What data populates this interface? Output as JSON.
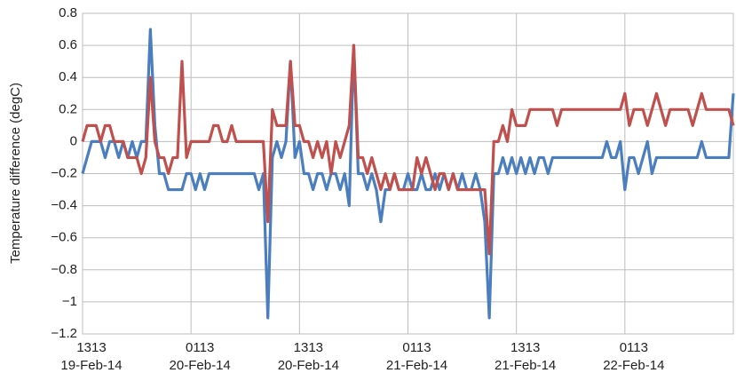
{
  "chart_data": {
    "type": "line",
    "y_label": "Temperature difference  (degC)",
    "categories": [
      "1313\n19-Feb-14",
      null,
      null,
      null,
      null,
      null,
      null,
      null,
      null,
      null,
      null,
      null,
      null,
      null,
      null,
      null,
      null,
      null,
      null,
      null,
      null,
      null,
      null,
      null,
      "0113\n20-Feb-14",
      null,
      null,
      null,
      null,
      null,
      null,
      null,
      null,
      null,
      null,
      null,
      null,
      null,
      null,
      null,
      null,
      null,
      null,
      null,
      null,
      null,
      null,
      null,
      "1313\n20-Feb-14",
      null,
      null,
      null,
      null,
      null,
      null,
      null,
      null,
      null,
      null,
      null,
      null,
      null,
      null,
      null,
      null,
      null,
      null,
      null,
      null,
      null,
      null,
      null,
      "0113\n21-Feb-14",
      null,
      null,
      null,
      null,
      null,
      null,
      null,
      null,
      null,
      null,
      null,
      null,
      null,
      null,
      null,
      null,
      null,
      null,
      null,
      null,
      null,
      null,
      null,
      "1313\n21-Feb-14",
      null,
      null,
      null,
      null,
      null,
      null,
      null,
      null,
      null,
      null,
      null,
      null,
      null,
      null,
      null,
      null,
      null,
      null,
      null,
      null,
      null,
      null,
      null,
      "0113\n22-Feb-14",
      null,
      null,
      null,
      null,
      null,
      null,
      null,
      null,
      null,
      null,
      null,
      null,
      null,
      null,
      null,
      null,
      null,
      null,
      null,
      null,
      null,
      null,
      null,
      null
    ],
    "series": [
      {
        "color": "#4a7ebf",
        "values": [
          -0.2,
          -0.1,
          0,
          0,
          0,
          -0.1,
          0,
          0,
          -0.1,
          0,
          -0.1,
          0,
          -0.1,
          0,
          0,
          0.7,
          0.1,
          -0.2,
          -0.2,
          -0.3,
          -0.3,
          -0.3,
          -0.3,
          -0.2,
          -0.2,
          -0.3,
          -0.2,
          -0.3,
          -0.2,
          -0.2,
          -0.2,
          -0.2,
          -0.2,
          -0.2,
          -0.2,
          -0.2,
          -0.2,
          -0.2,
          -0.2,
          -0.3,
          -0.2,
          -1.1,
          -0.1,
          0,
          -0.1,
          0,
          0.5,
          -0.1,
          0,
          -0.2,
          -0.2,
          -0.3,
          -0.2,
          -0.2,
          -0.3,
          -0.2,
          -0.2,
          -0.3,
          -0.2,
          -0.4,
          0.6,
          -0.2,
          -0.2,
          -0.3,
          -0.2,
          -0.3,
          -0.5,
          -0.3,
          -0.3,
          -0.2,
          -0.3,
          -0.3,
          -0.2,
          -0.3,
          -0.3,
          -0.2,
          -0.3,
          -0.3,
          -0.2,
          -0.3,
          -0.2,
          -0.3,
          -0.2,
          -0.3,
          -0.2,
          -0.3,
          -0.3,
          -0.2,
          -0.3,
          -0.5,
          -1.1,
          -0.2,
          -0.2,
          -0.1,
          -0.2,
          -0.1,
          -0.2,
          -0.1,
          -0.2,
          -0.1,
          -0.2,
          -0.1,
          -0.1,
          -0.2,
          -0.1,
          -0.1,
          -0.1,
          -0.1,
          -0.1,
          -0.1,
          -0.1,
          -0.1,
          -0.1,
          -0.1,
          -0.1,
          -0.1,
          0,
          -0.1,
          -0.1,
          0,
          -0.3,
          -0.1,
          -0.1,
          -0.2,
          -0.1,
          0,
          -0.2,
          -0.1,
          -0.1,
          -0.1,
          -0.1,
          -0.1,
          -0.1,
          -0.1,
          -0.1,
          -0.1,
          -0.1,
          0,
          -0.1,
          -0.1,
          -0.1,
          -0.1,
          -0.1,
          -0.1,
          0.3
        ]
      },
      {
        "color": "#c0504d",
        "values": [
          0,
          0.1,
          0.1,
          0.1,
          0,
          0.1,
          0.1,
          0,
          0,
          0,
          -0.1,
          -0.1,
          -0.1,
          -0.2,
          -0.1,
          0.4,
          0,
          -0.1,
          -0.1,
          -0.2,
          -0.1,
          -0.1,
          0.5,
          -0.1,
          0,
          0,
          0,
          0,
          0,
          0.1,
          0.1,
          0,
          0,
          0.1,
          0,
          0,
          0,
          0,
          0,
          0,
          0,
          -0.5,
          0.2,
          0.1,
          0.1,
          0.1,
          0.5,
          0.1,
          0.1,
          0,
          0,
          -0.1,
          0,
          -0.1,
          0,
          -0.2,
          0,
          -0.1,
          0,
          0.1,
          0.6,
          -0.1,
          -0.1,
          -0.2,
          -0.1,
          -0.2,
          -0.3,
          -0.2,
          -0.3,
          -0.2,
          -0.3,
          -0.3,
          -0.3,
          -0.3,
          -0.1,
          -0.2,
          -0.1,
          -0.2,
          -0.3,
          -0.2,
          -0.2,
          -0.3,
          -0.2,
          -0.3,
          -0.3,
          -0.3,
          -0.3,
          -0.3,
          -0.3,
          -0.3,
          -0.7,
          0,
          0,
          0.1,
          0,
          0.2,
          0.1,
          0.1,
          0.1,
          0.2,
          0.2,
          0.2,
          0.2,
          0.2,
          0.2,
          0.1,
          0.2,
          0.2,
          0.2,
          0.2,
          0.2,
          0.2,
          0.2,
          0.2,
          0.2,
          0.2,
          0.2,
          0.2,
          0.2,
          0.2,
          0.3,
          0.1,
          0.2,
          0.2,
          0.2,
          0.1,
          0.2,
          0.3,
          0.2,
          0.1,
          0.2,
          0.2,
          0.2,
          0.2,
          0.2,
          0.1,
          0.2,
          0.3,
          0.2,
          0.2,
          0.2,
          0.2,
          0.2,
          0.2,
          0.1
        ]
      }
    ],
    "ylim": [
      -1.2,
      0.8
    ],
    "yticks": [
      0.8,
      0.6,
      0.4,
      0.2,
      0,
      {
        "value": -0.2,
        "label": "−0.2"
      },
      {
        "value": -0.4,
        "label": "−0.4"
      },
      {
        "value": -0.6,
        "label": "−0.6"
      },
      {
        "value": -0.8,
        "label": "−0.8"
      },
      {
        "value": -1,
        "label": "−1"
      },
      {
        "value": -1.2,
        "label": "−1.2"
      }
    ],
    "grid": true
  }
}
